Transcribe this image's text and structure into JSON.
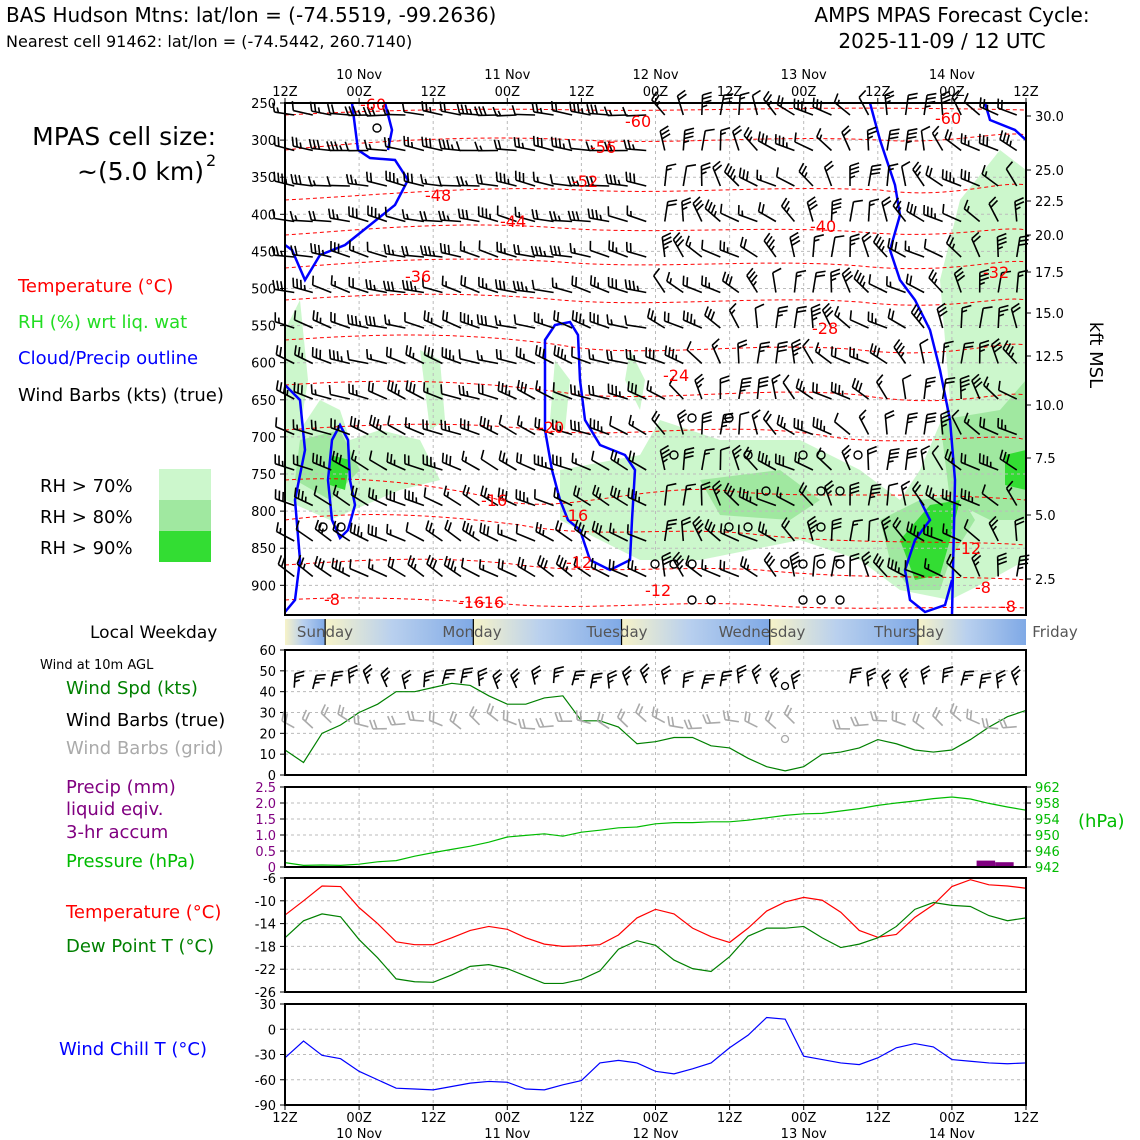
{
  "header": {
    "station": "BAS Hudson Mtns: lat/lon = (-74.5519, -99.2636)",
    "cell": "Nearest cell 91462: lat/lon = (-74.5442, 260.7140)",
    "cycle_line1": "AMPS MPAS Forecast Cycle:",
    "cycle_line2": "2025-11-09 / 12 UTC"
  },
  "cell_size": {
    "label": "MPAS cell size:",
    "value": "~(5.0 km)",
    "exponent": "2"
  },
  "legend_upper": {
    "temperature": "Temperature (°C)",
    "rh": "RH (%) wrt liq. wat",
    "cloud": "Cloud/Precip outline",
    "barbs": "Wind Barbs (kts) (true)",
    "rh70": "RH > 70%",
    "rh80": "RH > 80%",
    "rh90": "RH > 90%"
  },
  "colors": {
    "temperature": "#ff0000",
    "rh_text": "#22dd22",
    "cloud": "#0000ff",
    "rh70": "#ccf7cc",
    "rh80": "#a0e8a0",
    "rh90": "#33dd33",
    "wind_speed": "#008000",
    "grid_barbs": "#aaaaaa",
    "precip": "#800080",
    "pressure": "#00bb00",
    "dewpoint": "#008000",
    "windchill": "#0000ff"
  },
  "time_axis": {
    "ticks_top": [
      "12Z",
      "00Z",
      "12Z",
      "00Z",
      "12Z",
      "00Z",
      "12Z",
      "00Z",
      "12Z",
      "00Z",
      "12Z"
    ],
    "dates": [
      "10 Nov",
      "11 Nov",
      "12 Nov",
      "13 Nov",
      "14 Nov"
    ]
  },
  "weekday": {
    "label": "Local Weekday",
    "days": [
      "Sunday",
      "Monday",
      "Tuesday",
      "Wednesday",
      "Thursday",
      "Friday"
    ]
  },
  "upper_axes": {
    "pressure_ticks": [
      "250",
      "300",
      "350",
      "400",
      "450",
      "500",
      "550",
      "600",
      "650",
      "700",
      "750",
      "800",
      "850",
      "900"
    ],
    "height_ticks": [
      "30.0",
      "25.0",
      "22.5",
      "20.0",
      "17.5",
      "15.0",
      "12.5",
      "10.0",
      "7.5",
      "5.0",
      "2.5"
    ],
    "height_label": "kft MSL"
  },
  "panel_wind": {
    "title": "Wind at 10m AGL",
    "spd_label": "Wind Spd (kts)",
    "barbs_true": "Wind Barbs (true)",
    "barbs_grid": "Wind Barbs (grid)",
    "y_ticks": [
      "0",
      "10",
      "20",
      "30",
      "40",
      "50",
      "60"
    ]
  },
  "panel_precip": {
    "precip_label1": "Precip (mm)",
    "precip_label2": "liquid eqiv.",
    "precip_label3": "3-hr accum",
    "pressure_label": "Pressure (hPa)",
    "left_ticks": [
      "0",
      "0.5",
      "1.0",
      "1.5",
      "2.0",
      "2.5"
    ],
    "right_ticks": [
      "942",
      "946",
      "950",
      "954",
      "958",
      "962"
    ],
    "right_unit": "(hPa)"
  },
  "panel_temp": {
    "temp_label": "Temperature (°C)",
    "dew_label": "Dew Point T (°C)",
    "y_ticks": [
      "-26",
      "-22",
      "-18",
      "-14",
      "-10",
      "-6"
    ]
  },
  "panel_chill": {
    "label": "Wind Chill T (°C)",
    "y_ticks": [
      "-90",
      "-60",
      "-30",
      "0",
      "30"
    ]
  },
  "upper_labels": {
    "temperature_contours": [
      "-60",
      "-60",
      "-60",
      "-56",
      "-52",
      "-48",
      "-44",
      "-40",
      "-36",
      "-32",
      "-28",
      "-24",
      "-20",
      "-16",
      "-16",
      "-12",
      "-12",
      "-12",
      "-8",
      "-8",
      "-8",
      "-16",
      "-16"
    ]
  },
  "chart_data": [
    {
      "type": "line",
      "title": "Wind at 10m AGL",
      "xlabel": "",
      "ylabel": "",
      "x_hours": [
        0,
        3,
        6,
        9,
        12,
        15,
        18,
        21,
        24,
        27,
        30,
        33,
        36,
        39,
        42,
        45,
        48,
        51,
        54,
        57,
        60,
        63,
        66,
        69,
        72,
        75,
        78,
        81,
        84,
        87,
        90,
        93,
        96,
        99,
        102,
        105,
        108,
        111,
        114,
        117,
        120
      ],
      "ylim": [
        0,
        60
      ],
      "series": [
        {
          "name": "Wind Spd (kts)",
          "values": [
            12,
            6,
            20,
            24,
            30,
            34,
            40,
            40,
            42,
            44,
            43,
            38,
            34,
            34,
            37,
            38,
            26,
            26,
            23,
            15,
            16,
            18,
            18,
            14,
            13,
            8,
            4,
            2,
            4,
            10,
            11,
            13,
            17,
            15,
            12,
            11,
            12,
            17,
            23,
            28,
            31
          ]
        }
      ]
    },
    {
      "type": "line",
      "title": "",
      "xlabel": "",
      "ylabel": "Precip (mm)",
      "x_hours": [
        0,
        3,
        6,
        9,
        12,
        15,
        18,
        21,
        24,
        27,
        30,
        33,
        36,
        39,
        42,
        45,
        48,
        51,
        54,
        57,
        60,
        63,
        66,
        69,
        72,
        75,
        78,
        81,
        84,
        87,
        90,
        93,
        96,
        99,
        102,
        105,
        108,
        111,
        114,
        117,
        120
      ],
      "ylim_left": [
        0,
        2.5
      ],
      "ylim_right": [
        942,
        962
      ],
      "series": [
        {
          "name": "Pressure (hPa)",
          "axis": "right",
          "values": [
            943.1,
            942.4,
            942.5,
            942.4,
            942.7,
            943.3,
            943.6,
            944.7,
            945.6,
            946.4,
            947.2,
            948.2,
            949.5,
            949.9,
            950.3,
            949.7,
            950.7,
            951.2,
            951.8,
            952.0,
            952.8,
            953.1,
            953.1,
            953.3,
            953.3,
            953.7,
            954.3,
            954.9,
            955.3,
            955.4,
            956.0,
            956.6,
            957.4,
            958.0,
            958.5,
            959.1,
            959.5,
            959.0,
            957.9,
            957.0,
            956.2
          ]
        },
        {
          "name": "Precip (mm)",
          "axis": "left",
          "type": "bar",
          "bar_hours": [
            112,
            115
          ],
          "values": [
            0.2,
            0.15
          ]
        }
      ]
    },
    {
      "type": "line",
      "title": "",
      "xlabel": "",
      "ylabel": "",
      "x_hours": [
        0,
        3,
        6,
        9,
        12,
        15,
        18,
        21,
        24,
        27,
        30,
        33,
        36,
        39,
        42,
        45,
        48,
        51,
        54,
        57,
        60,
        63,
        66,
        69,
        72,
        75,
        78,
        81,
        84,
        87,
        90,
        93,
        96,
        99,
        102,
        105,
        108,
        111,
        114,
        117,
        120
      ],
      "ylim": [
        -26,
        -6
      ],
      "series": [
        {
          "name": "Temperature (°C)",
          "values": [
            -12.5,
            -10.0,
            -7.4,
            -7.5,
            -11.2,
            -14.0,
            -17.2,
            -17.7,
            -17.7,
            -16.5,
            -15.2,
            -14.5,
            -15.0,
            -16.5,
            -17.6,
            -18.0,
            -17.9,
            -17.7,
            -16.0,
            -13.0,
            -11.5,
            -12.3,
            -14.8,
            -16.3,
            -17.3,
            -14.8,
            -11.8,
            -10.2,
            -9.4,
            -9.9,
            -12.0,
            -15.2,
            -16.4,
            -15.9,
            -12.9,
            -10.7,
            -7.5,
            -6.3,
            -7.2,
            -7.4,
            -7.8
          ]
        },
        {
          "name": "Dew Point T (°C)",
          "values": [
            -16.5,
            -13.5,
            -12.3,
            -12.8,
            -16.8,
            -20.0,
            -23.7,
            -24.2,
            -24.3,
            -23.0,
            -21.5,
            -21.2,
            -21.9,
            -23.2,
            -24.5,
            -24.5,
            -23.8,
            -22.3,
            -18.5,
            -17.0,
            -17.8,
            -20.4,
            -21.9,
            -22.4,
            -19.8,
            -16.2,
            -14.8,
            -14.8,
            -14.5,
            -16.5,
            -18.2,
            -17.6,
            -16.5,
            -14.5,
            -11.5,
            -10.3,
            -10.8,
            -11.0,
            -12.6,
            -13.5,
            -13.0
          ]
        }
      ]
    },
    {
      "type": "line",
      "title": "",
      "xlabel": "",
      "ylabel": "",
      "x_hours": [
        0,
        3,
        6,
        9,
        12,
        15,
        18,
        21,
        24,
        27,
        30,
        33,
        36,
        39,
        42,
        45,
        48,
        51,
        54,
        57,
        60,
        63,
        66,
        69,
        72,
        75,
        78,
        81,
        84,
        87,
        90,
        93,
        96,
        99,
        102,
        105,
        108,
        111,
        114,
        117,
        120
      ],
      "ylim": [
        -90,
        30
      ],
      "series": [
        {
          "name": "Wind Chill T (°C)",
          "values": [
            -34,
            -14,
            -31,
            -35,
            -50,
            -60,
            -70,
            -71,
            -72,
            -68,
            -64,
            -62,
            -63,
            -71,
            -72,
            -66,
            -61,
            -40,
            -37,
            -40,
            -50,
            -53,
            -47,
            -40,
            -22,
            -7,
            14,
            12,
            -32,
            -36,
            -40,
            -42,
            -34,
            -22,
            -17,
            -21,
            -36,
            -38,
            -40,
            -41,
            -40
          ]
        }
      ]
    }
  ]
}
